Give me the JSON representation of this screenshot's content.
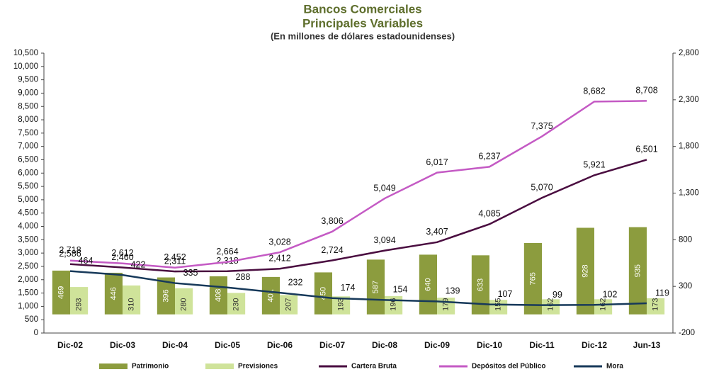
{
  "chart_data": {
    "type": "combo",
    "title": "Bancos Comerciales",
    "subtitle": "Principales Variables",
    "note": "(En millones de dólares estadounidenses)",
    "categories": [
      "Dic-02",
      "Dic-03",
      "Dic-04",
      "Dic-05",
      "Dic-06",
      "Dic-07",
      "Dic-08",
      "Dic-09",
      "Dic-10",
      "Dic-11",
      "Dic-12",
      "Jun-13"
    ],
    "ylim": [
      0,
      10500
    ],
    "yticks": [
      0,
      500,
      {
        "value": 1000,
        "label": "1,000"
      },
      {
        "value": 1500,
        "label": "1,500"
      },
      {
        "value": 2000,
        "label": "2,000"
      },
      {
        "value": 2500,
        "label": "2,500"
      },
      {
        "value": 3000,
        "label": "3,000"
      },
      {
        "value": 3500,
        "label": "3,500"
      },
      {
        "value": 4000,
        "label": "4,000"
      },
      {
        "value": 4500,
        "label": "4,500"
      },
      {
        "value": 5000,
        "label": "5,000"
      },
      {
        "value": 5500,
        "label": "5,500"
      },
      {
        "value": 6000,
        "label": "6,000"
      },
      {
        "value": 6500,
        "label": "6,500"
      },
      {
        "value": 7000,
        "label": "7,000"
      },
      {
        "value": 7500,
        "label": "7,500"
      },
      {
        "value": 8000,
        "label": "8,000"
      },
      {
        "value": 8500,
        "label": "8,500"
      },
      {
        "value": 9000,
        "label": "9,000"
      },
      {
        "value": 9500,
        "label": "9,500"
      },
      {
        "value": 10000,
        "label": "10,000"
      },
      {
        "value": 10500,
        "label": "10,500"
      }
    ],
    "y2lim": [
      -200,
      2800
    ],
    "y2ticks": [
      -200,
      300,
      800,
      {
        "value": 1300,
        "label": "1,300"
      },
      {
        "value": 1800,
        "label": "1,800"
      },
      {
        "value": 2300,
        "label": "2,300"
      },
      {
        "value": 2800,
        "label": "2,800"
      }
    ],
    "series": [
      {
        "name": "Patrimonio",
        "type": "bar",
        "axis": "y2",
        "color": "#8c9c3e",
        "values": [
          469,
          446,
          396,
          408,
          401,
          450,
          587,
          640,
          633,
          765,
          928,
          935
        ]
      },
      {
        "name": "Previsiones",
        "type": "bar",
        "axis": "y2",
        "color": "#cfe39a",
        "values": [
          293,
          310,
          280,
          230,
          207,
          193,
          196,
          179,
          155,
          162,
          162,
          173
        ]
      },
      {
        "name": "Cartera Bruta",
        "type": "line",
        "color": "#4a0d40",
        "values": [
          2586,
          2460,
          2311,
          2318,
          2412,
          2724,
          3094,
          3407,
          4085,
          5070,
          5921,
          6501
        ],
        "value_labels": [
          "2,586",
          "2,460",
          "2,311",
          "2,318",
          "2,412",
          "2,724",
          "3,094",
          "3,407",
          "4,085",
          "5,070",
          "5,921",
          "6,501"
        ]
      },
      {
        "name": "Depósitos del Público",
        "type": "line",
        "color": "#c45ac4",
        "values": [
          2718,
          2612,
          2452,
          2664,
          3028,
          3806,
          5049,
          6017,
          6237,
          7375,
          8682,
          8708
        ],
        "value_labels": [
          "2,718",
          "2,612",
          "2,452",
          "2,664",
          "3,028",
          "3,806",
          "5,049",
          "6,017",
          "6,237",
          "7,375",
          "8,682",
          "8,708"
        ]
      },
      {
        "name": "Mora",
        "type": "line",
        "axis": "y2",
        "color": "#17395a",
        "values": [
          464,
          422,
          335,
          288,
          232,
          174,
          154,
          139,
          107,
          99,
          102,
          119
        ]
      }
    ]
  }
}
